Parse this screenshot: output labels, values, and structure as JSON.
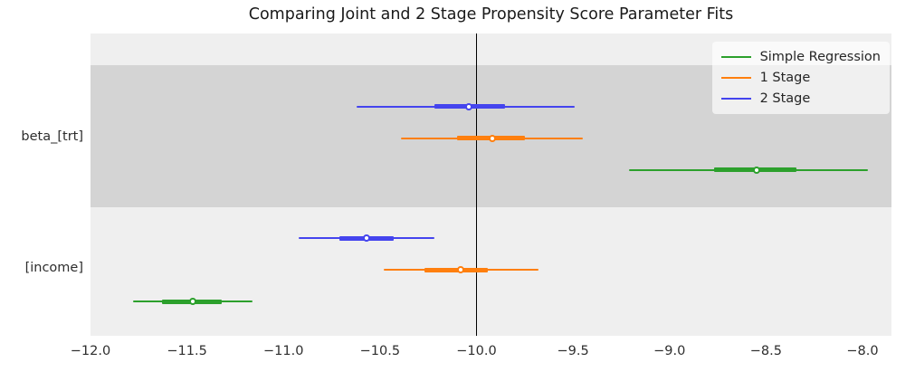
{
  "figure": {
    "title": "Comparing Joint and 2 Stage Propensity Score Parameter Fits"
  },
  "chart_data": {
    "type": "scatter",
    "subtype": "forest-plot / point estimates with confidence intervals",
    "title": "Comparing Joint and 2 Stage Propensity Score Parameter Fits",
    "xlabel": "",
    "ylabel": "",
    "xlim": [
      -12.0,
      -7.85
    ],
    "x_ticks": [
      -12.0,
      -11.5,
      -11.0,
      -10.5,
      -10.0,
      -9.5,
      -9.0,
      -8.5,
      -8.0
    ],
    "x_tick_labels": [
      "−12.0",
      "−11.5",
      "−11.0",
      "−10.5",
      "−10.0",
      "−9.5",
      "−9.0",
      "−8.5",
      "−8.0"
    ],
    "reference_line_x": -10.0,
    "grid": false,
    "legend_position": "upper right",
    "categories": [
      "beta_[trt]",
      "[income]"
    ],
    "series": [
      {
        "name": "Simple Regression",
        "color": "#2ca02c",
        "points": [
          {
            "category": "beta_[trt]",
            "estimate": -8.55,
            "ci95_low": -9.21,
            "ci95_high": -7.97,
            "ci50_low": -8.77,
            "ci50_high": -8.34
          },
          {
            "category": "[income]",
            "estimate": -11.47,
            "ci95_low": -11.78,
            "ci95_high": -11.16,
            "ci50_low": -11.63,
            "ci50_high": -11.32
          }
        ]
      },
      {
        "name": "1 Stage",
        "color": "#ff7f0e",
        "points": [
          {
            "category": "beta_[trt]",
            "estimate": -9.92,
            "ci95_low": -10.39,
            "ci95_high": -9.45,
            "ci50_low": -10.1,
            "ci50_high": -9.75
          },
          {
            "category": "[income]",
            "estimate": -10.08,
            "ci95_low": -10.48,
            "ci95_high": -9.68,
            "ci50_low": -10.27,
            "ci50_high": -9.94
          }
        ]
      },
      {
        "name": "2 Stage",
        "color": "#4444ee",
        "points": [
          {
            "category": "beta_[trt]",
            "estimate": -10.04,
            "ci95_low": -10.62,
            "ci95_high": -9.49,
            "ci50_low": -10.22,
            "ci50_high": -9.85
          },
          {
            "category": "[income]",
            "estimate": -10.57,
            "ci95_low": -10.92,
            "ci95_high": -10.22,
            "ci50_low": -10.71,
            "ci50_high": -10.43
          }
        ]
      }
    ],
    "colors": {
      "plot_background": "#efefef",
      "band_highlight": "#d4d4d4",
      "reference_line": "#000000"
    }
  }
}
